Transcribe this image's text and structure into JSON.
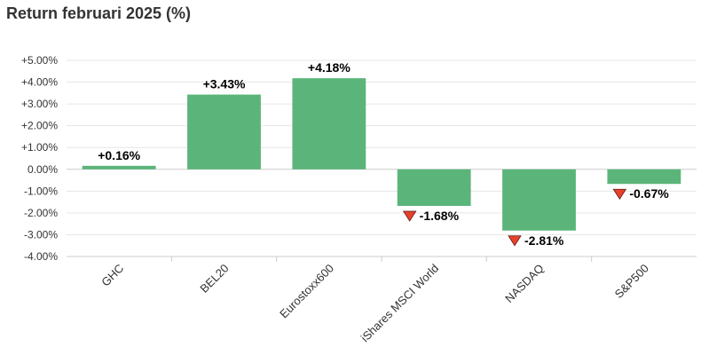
{
  "chart_data": {
    "type": "bar",
    "title": "Return februari 2025 (%)",
    "categories": [
      "GHC",
      "BEL20",
      "Eurostoxx600",
      "iShares MSCI World",
      "NASDAQ",
      "S&P500"
    ],
    "values": [
      0.16,
      3.43,
      4.18,
      -1.68,
      -2.81,
      -0.67
    ],
    "data_labels": [
      "+0.16%",
      "+3.43%",
      "+4.18%",
      "-1.68%",
      "-2.81%",
      "-0.67%"
    ],
    "ylim": [
      -4,
      5
    ],
    "yticks": [
      5,
      4,
      3,
      2,
      1,
      0,
      -1,
      -2,
      -3,
      -4
    ],
    "ytick_labels": [
      "+5.00%",
      "+4.00%",
      "+3.00%",
      "+2.00%",
      "+1.00%",
      "0.00%",
      "-1.00%",
      "-2.00%",
      "-3.00%",
      "-4.00%"
    ],
    "grid": true,
    "bar_color": "#5bb57a",
    "negative_marker_color": "#e8412c",
    "negative_marker_icon": "triangle-down-icon"
  }
}
